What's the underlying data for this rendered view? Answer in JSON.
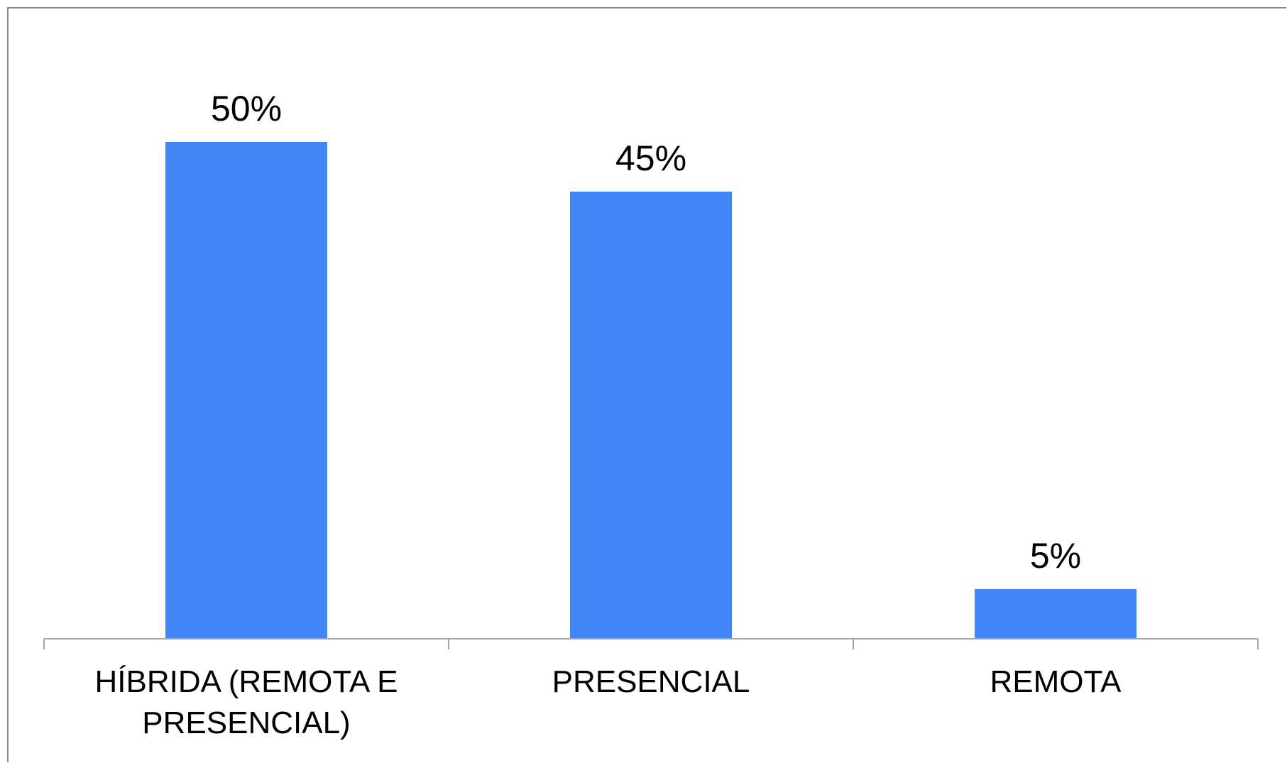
{
  "chart_data": {
    "type": "bar",
    "categories": [
      [
        "HÍBRIDA (REMOTA E",
        "PRESENCIAL)"
      ],
      [
        "PRESENCIAL"
      ],
      [
        "REMOTA"
      ]
    ],
    "values": [
      50,
      45,
      5
    ],
    "data_labels": [
      "50%",
      "45%",
      "5%"
    ],
    "title": "",
    "xlabel": "",
    "ylabel": "",
    "ylim": [
      0,
      65
    ],
    "grid": false,
    "legend": "none",
    "bar_color": "#4285f4",
    "axis_color": "#a6a6a6"
  }
}
